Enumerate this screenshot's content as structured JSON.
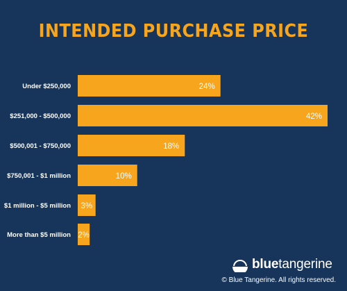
{
  "chart_data": {
    "type": "bar",
    "orientation": "horizontal",
    "title": "INTENDED PURCHASE PRICE",
    "categories": [
      "Under $250,000",
      "$251,000 - $500,000",
      "$500,001 - $750,000",
      "$750,001 - $1 million",
      "$1 million - $5 million",
      "More than $5 million"
    ],
    "values": [
      24,
      42,
      18,
      10,
      3,
      2
    ],
    "value_labels": [
      "24%",
      "42%",
      "18%",
      "10%",
      "3%",
      "2%"
    ],
    "unit": "%",
    "xlim": [
      0,
      42
    ],
    "grid": false,
    "bar_color": "#f6a51c"
  },
  "brand": {
    "name_bold": "blue",
    "name_regular": "tangerine",
    "copyright": "© Blue Tangerine. All rights reserved."
  },
  "colors": {
    "background": "#17355a",
    "accent": "#f6a51c",
    "text": "#ffffff"
  }
}
